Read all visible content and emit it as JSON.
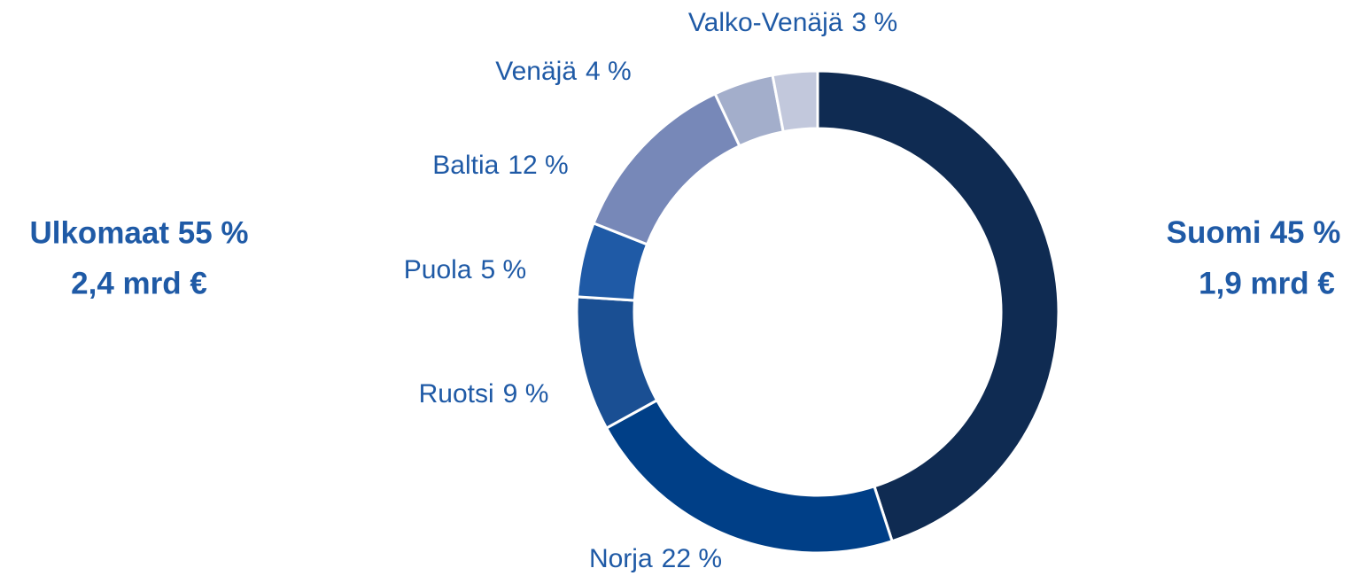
{
  "chart_data": {
    "type": "donut",
    "categories": [
      "Suomi",
      "Norja",
      "Ruotsi",
      "Puola",
      "Baltia",
      "Venäjä",
      "Valko-Venäjä"
    ],
    "values": [
      45,
      22,
      9,
      5,
      12,
      4,
      3
    ],
    "value_labels": [
      "45 %",
      "22 %",
      "9 %",
      "5 %",
      "12 %",
      "4 %",
      "3 %"
    ],
    "colors": [
      "#0f2b52",
      "#003f87",
      "#1a4f93",
      "#1f5aa6",
      "#7788b8",
      "#a3aecb",
      "#c2c8dc"
    ],
    "annotations": [
      "Ulkomaat 55 %",
      "2,4 mrd €",
      "1,9 mrd €"
    ]
  }
}
